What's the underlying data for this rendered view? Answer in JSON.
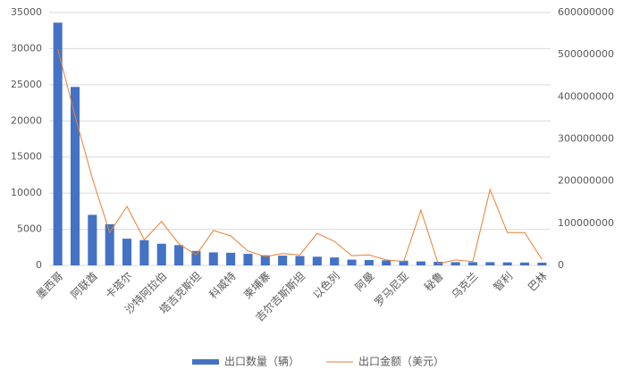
{
  "chart_data": {
    "type": "bar_line",
    "categories": [
      "墨西哥",
      null,
      "阿联酋",
      null,
      "卡塔尔",
      null,
      "沙特阿拉伯",
      null,
      "塔吉克斯坦",
      null,
      "科威特",
      null,
      "柬埔寨",
      null,
      "吉尔吉斯斯坦",
      null,
      "以色列",
      null,
      "阿曼",
      null,
      "罗马尼亚",
      null,
      "秘鲁",
      null,
      "乌克兰",
      null,
      "智利",
      null,
      "巴林"
    ],
    "series": [
      {
        "name": "出口数量（辆）",
        "color": "#4472c4",
        "type": "bar",
        "values": [
          33600,
          24700,
          7000,
          5700,
          3700,
          3500,
          3000,
          2800,
          2000,
          1800,
          1750,
          1600,
          1400,
          1350,
          1300,
          1200,
          1100,
          800,
          750,
          700,
          650,
          550,
          500,
          450,
          450,
          450,
          420,
          400,
          380
        ]
      },
      {
        "name": "出口金额（美元）",
        "color": "#ed7d31",
        "type": "line",
        "axis": "y2",
        "values": [
          513000000,
          354000000,
          206000000,
          78000000,
          140000000,
          61000000,
          104000000,
          51000000,
          25000000,
          83000000,
          70000000,
          34000000,
          21000000,
          28000000,
          25000000,
          76000000,
          57000000,
          23000000,
          25000000,
          13000000,
          9000000,
          131000000,
          4000000,
          13000000,
          9000000,
          180000000,
          78000000,
          78000000,
          14000000
        ]
      }
    ],
    "ylim": [
      0,
      35000
    ],
    "yticks": [
      0,
      5000,
      10000,
      15000,
      20000,
      25000,
      30000,
      35000
    ],
    "y2lim": [
      0,
      600000000
    ],
    "y2ticks": [
      0,
      100000000,
      200000000,
      300000000,
      400000000,
      500000000,
      600000000
    ],
    "grid": true,
    "legend": "bottom"
  }
}
